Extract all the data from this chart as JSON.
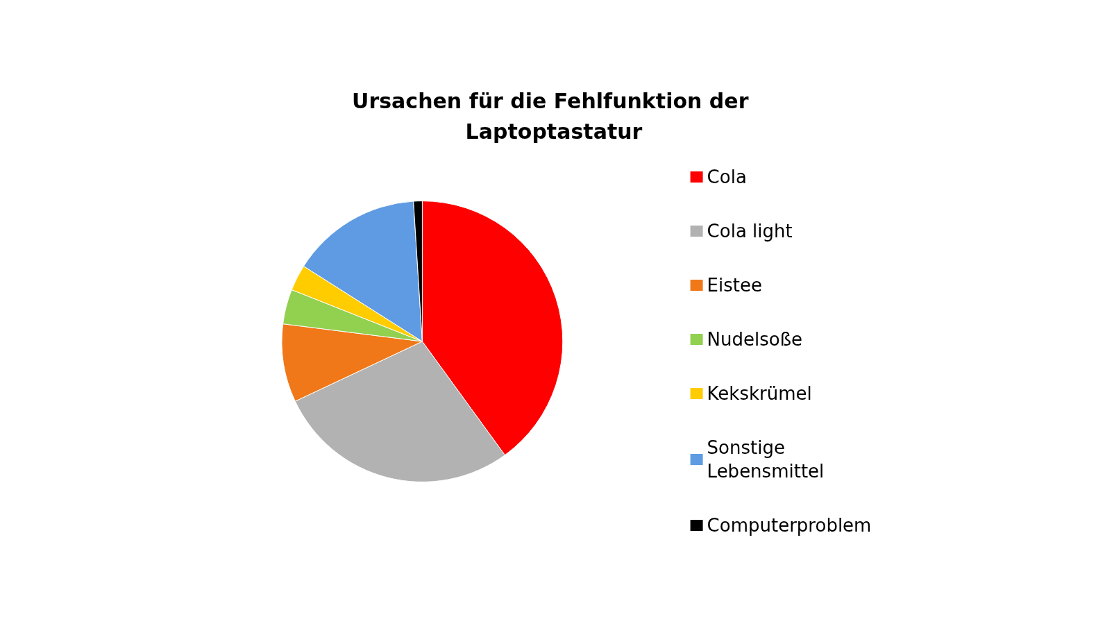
{
  "chart_data": {
    "type": "pie",
    "title": "Ursachen für die Fehlfunktion der Laptoptastatur",
    "categories": [
      "Cola",
      "Cola light",
      "Eistee",
      "Nudelsoße",
      "Kekskrümel",
      "Sonstige Lebensmittel",
      "Computerproblem"
    ],
    "values": [
      40,
      28,
      9,
      4,
      3,
      15,
      1
    ],
    "colors": [
      "#ff0000",
      "#b2b2b2",
      "#f07818",
      "#92d050",
      "#ffcc00",
      "#5f9be3",
      "#000000"
    ],
    "legend": "right"
  }
}
